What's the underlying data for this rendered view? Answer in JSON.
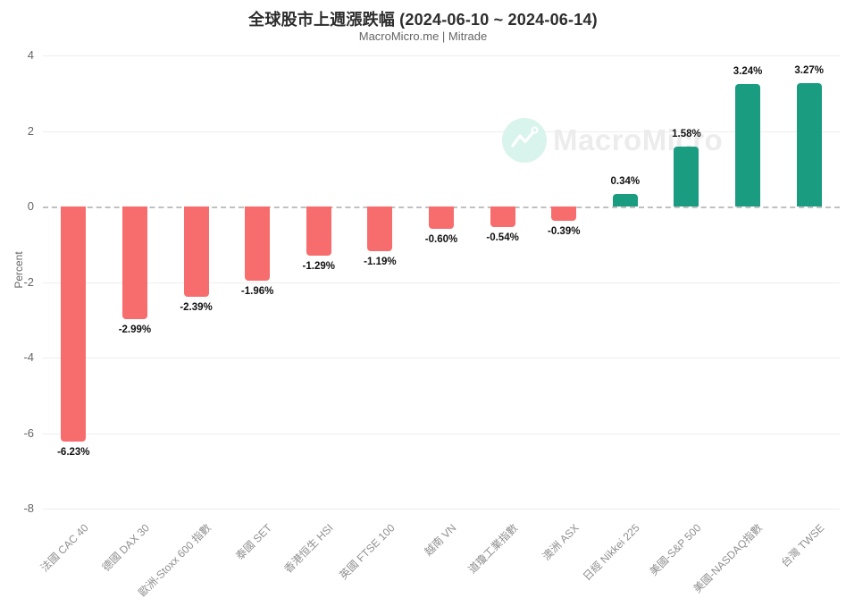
{
  "header": {
    "title": "全球股市上週漲跌幅 (2024-06-10 ~ 2024-06-14)",
    "subtitle": "MacroMicro.me | Mitrade"
  },
  "watermark": {
    "brand": "MacroMicro"
  },
  "chart_data": {
    "type": "bar",
    "title": "全球股市上週漲跌幅 (2024-06-10 ~ 2024-06-14)",
    "subtitle": "MacroMicro.me | Mitrade",
    "xlabel": "",
    "ylabel": "Percent",
    "ylim": [
      -8,
      4
    ],
    "yticks": [
      4,
      2,
      0,
      -2,
      -4,
      -6,
      -8
    ],
    "grid": true,
    "zero_line": "dashed",
    "legend": "none",
    "categories": [
      "法國 CAC 40",
      "德國 DAX 30",
      "歐洲-Stoxx 600 指數",
      "泰國 SET",
      "香港恒生 HSI",
      "英國 FTSE 100",
      "越南 VN",
      "道瓊工業指數",
      "澳洲 ASX",
      "日經 Nikkei 225",
      "美國-S&P 500",
      "美國-NASDAQ指數",
      "台灣 TWSE"
    ],
    "values": [
      -6.23,
      -2.99,
      -2.39,
      -1.96,
      -1.29,
      -1.19,
      -0.6,
      -0.54,
      -0.39,
      0.34,
      1.58,
      3.24,
      3.27
    ],
    "value_labels": [
      "-6.23%",
      "-2.99%",
      "-2.39%",
      "-1.96%",
      "-1.29%",
      "-1.19%",
      "-0.60%",
      "-0.54%",
      "-0.39%",
      "0.34%",
      "1.58%",
      "3.24%",
      "3.27%"
    ],
    "colors": {
      "positive": "#1a9c80",
      "negative": "#f76d6d",
      "gridline": "#eeeeee",
      "zero_line": "#c0c0c0",
      "watermark_circle": "#d9f4ec",
      "watermark_text": "#ececec"
    }
  }
}
